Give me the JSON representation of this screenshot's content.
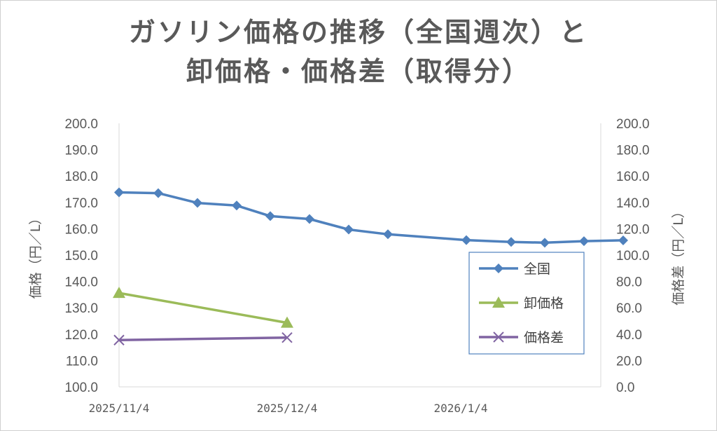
{
  "chart_data": {
    "type": "line",
    "title_line1": "ガソリン価格の推移（全国週次）と",
    "title_line2": "卸価格・価格差（取得分）",
    "ylabel_left": "価格（円／L）",
    "ylabel_right": "価格差（円／L）",
    "ylim_left": [
      100,
      200
    ],
    "ylim_right": [
      0,
      200
    ],
    "yticks_left": [
      "200.0",
      "190.0",
      "180.0",
      "170.0",
      "160.0",
      "150.0",
      "140.0",
      "130.0",
      "120.0",
      "110.0",
      "100.0"
    ],
    "yticks_right": [
      "200.0",
      "180.0",
      "160.0",
      "140.0",
      "120.0",
      "100.0",
      "80.0",
      "60.0",
      "40.0",
      "20.0",
      "0.0"
    ],
    "x_tick_labels": [
      "2025/11/4",
      "2025/12/4",
      "2026/1/4"
    ],
    "x_tick_dates": [
      "2025-11-04",
      "2025-12-04",
      "2026-01-04"
    ],
    "xlim": [
      "2025-11-04",
      "2026-01-29"
    ],
    "grid": false,
    "legend_position": "right",
    "series": [
      {
        "name": "全国",
        "axis": "left",
        "marker": "diamond",
        "color": "#4f81bd",
        "x": [
          "2025-11-04",
          "2025-11-11",
          "2025-11-18",
          "2025-11-25",
          "2025-12-01",
          "2025-12-08",
          "2025-12-15",
          "2025-12-22",
          "2026-01-05",
          "2026-01-13",
          "2026-01-19",
          "2026-01-26",
          "2026-02-02"
        ],
        "values": [
          173.8,
          173.5,
          169.8,
          168.8,
          164.8,
          163.7,
          159.7,
          157.9,
          155.7,
          155.0,
          154.7,
          155.3,
          155.6
        ]
      },
      {
        "name": "卸価格",
        "axis": "left",
        "marker": "triangle",
        "color": "#9bbb59",
        "x": [
          "2025-11-04",
          "2025-12-04"
        ],
        "values": [
          135.6,
          124.3
        ]
      },
      {
        "name": "価格差",
        "axis": "right",
        "marker": "x",
        "color": "#8064a2",
        "x": [
          "2025-11-04",
          "2025-12-04"
        ],
        "values": [
          35.5,
          37.4
        ]
      }
    ]
  }
}
